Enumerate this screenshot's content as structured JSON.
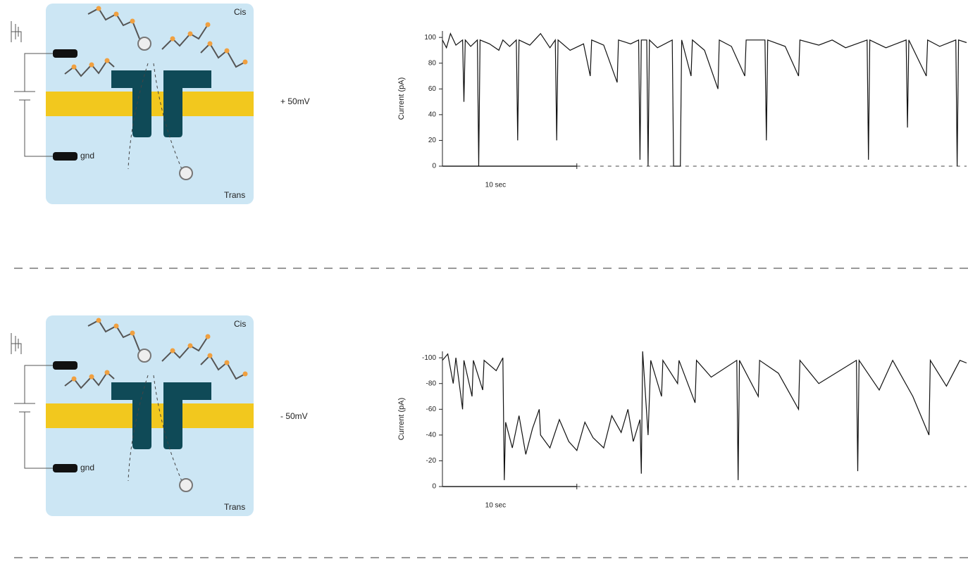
{
  "panels": [
    {
      "cis": "Cis",
      "trans": "Trans",
      "electrode": "gnd",
      "voltage": "+ 50mV"
    },
    {
      "cis": "Cis",
      "trans": "Trans",
      "electrode": "gnd",
      "voltage": "- 50mV"
    }
  ],
  "chart_data": [
    {
      "type": "line",
      "y_label": "Current (pA)",
      "color": "#111111",
      "xlim": [
        0,
        39
      ],
      "ylim": [
        0,
        105
      ],
      "yticks": [
        0,
        20,
        40,
        60,
        80,
        100
      ],
      "scale_bar": {
        "value": 10,
        "label": "10 sec"
      },
      "x": [
        0,
        0.3,
        0.6,
        1.0,
        1.5,
        1.6,
        1.7,
        2.1,
        2.6,
        2.7,
        2.8,
        3.5,
        4.2,
        4.5,
        5.0,
        5.5,
        5.6,
        5.7,
        6.5,
        7.3,
        8.0,
        8.4,
        8.5,
        8.6,
        9.5,
        10.5,
        11.0,
        11.1,
        12.0,
        13.0,
        13.1,
        14.0,
        14.6,
        14.7,
        14.8,
        15.2,
        15.3,
        15.4,
        16.0,
        17.1,
        17.2,
        17.7,
        17.8,
        18.5,
        18.6,
        19.5,
        20.5,
        20.6,
        21.5,
        22.5,
        22.6,
        24.0,
        24.1,
        24.2,
        25.5,
        26.5,
        26.6,
        28.0,
        29.0,
        30.0,
        31.6,
        31.7,
        31.8,
        33.0,
        34.5,
        34.6,
        34.7,
        36.0,
        36.1,
        37.0,
        38.2,
        38.3,
        38.4,
        39.0
      ],
      "values": [
        98,
        92,
        103,
        94,
        98,
        50,
        98,
        93,
        98,
        0,
        98,
        95,
        90,
        98,
        93,
        98,
        20,
        98,
        94,
        103,
        92,
        98,
        20,
        98,
        90,
        95,
        70,
        98,
        94,
        65,
        98,
        95,
        98,
        5,
        98,
        98,
        0,
        98,
        92,
        98,
        0,
        0,
        98,
        70,
        98,
        90,
        60,
        98,
        93,
        70,
        98,
        98,
        20,
        98,
        93,
        70,
        98,
        94,
        98,
        92,
        98,
        5,
        98,
        92,
        98,
        30,
        98,
        70,
        98,
        93,
        98,
        0,
        98,
        96
      ]
    },
    {
      "type": "line",
      "y_label": "Current (pA)",
      "color": "#111111",
      "xlim": [
        0,
        39
      ],
      "ylim": [
        0,
        -105
      ],
      "yticks": [
        0,
        -20,
        -40,
        -60,
        -80,
        -100
      ],
      "scale_bar": {
        "value": 10,
        "label": "10 sec"
      },
      "x": [
        0,
        0.4,
        0.8,
        1.0,
        1.5,
        1.6,
        2.2,
        2.3,
        3.0,
        3.1,
        4.0,
        4.5,
        4.6,
        4.7,
        5.2,
        5.7,
        6.2,
        6.7,
        7.2,
        7.3,
        8.0,
        8.7,
        9.4,
        10.0,
        10.6,
        11.2,
        12.0,
        12.6,
        13.3,
        13.8,
        14.2,
        14.7,
        14.8,
        14.9,
        15.3,
        15.5,
        16.3,
        16.4,
        17.5,
        17.6,
        18.8,
        18.9,
        20.0,
        21.9,
        22.0,
        22.1,
        23.5,
        23.6,
        25.0,
        26.5,
        26.6,
        28.0,
        30.8,
        30.9,
        31.0,
        32.5,
        33.5,
        35.0,
        36.2,
        36.3,
        37.5,
        38.5,
        39.0
      ],
      "values": [
        -98,
        -103,
        -80,
        -100,
        -60,
        -98,
        -70,
        -98,
        -75,
        -98,
        -90,
        -100,
        -5,
        -50,
        -30,
        -55,
        -25,
        -45,
        -60,
        -40,
        -30,
        -52,
        -35,
        -28,
        -50,
        -38,
        -30,
        -55,
        -42,
        -60,
        -35,
        -52,
        -10,
        -105,
        -40,
        -98,
        -70,
        -98,
        -80,
        -98,
        -65,
        -98,
        -85,
        -98,
        -5,
        -98,
        -70,
        -98,
        -88,
        -60,
        -98,
        -80,
        -98,
        -12,
        -98,
        -75,
        -98,
        -70,
        -40,
        -98,
        -78,
        -98,
        -96
      ]
    }
  ]
}
